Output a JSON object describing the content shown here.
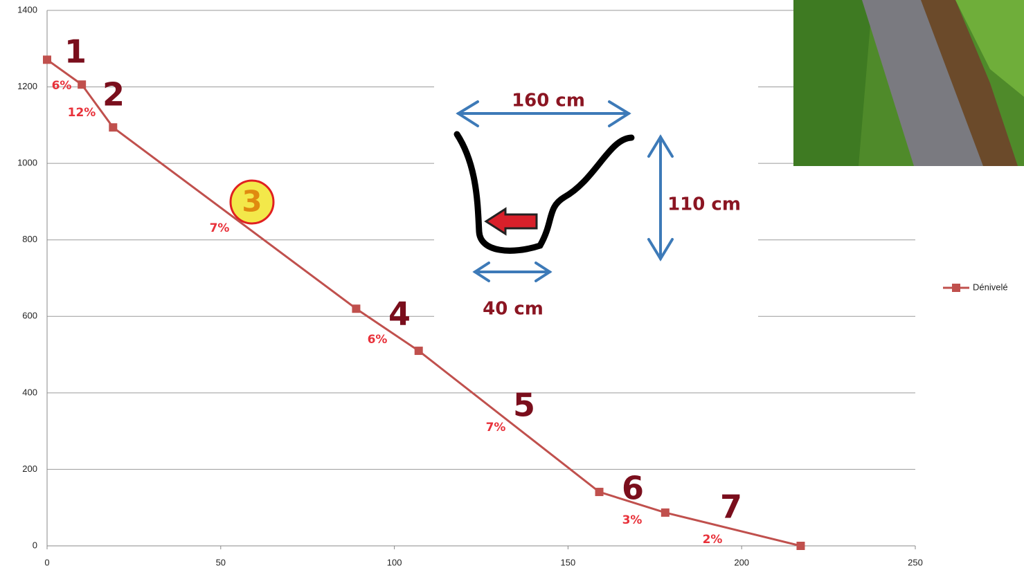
{
  "chart_data": {
    "type": "line",
    "x": [
      0,
      10,
      19,
      89,
      107,
      159,
      178,
      217
    ],
    "series": [
      {
        "name": "Dénivelé",
        "color": "#c0504d",
        "values": [
          1271,
          1206,
          1094,
          620,
          510,
          141,
          87,
          0
        ]
      }
    ],
    "xlim": [
      0,
      250
    ],
    "ylim": [
      0,
      1400
    ],
    "xticks": [
      0,
      50,
      100,
      150,
      200,
      250
    ],
    "yticks": [
      0,
      200,
      400,
      600,
      800,
      1000,
      1200,
      1400
    ],
    "grid": true,
    "legend": "right",
    "annotations": {
      "sections": [
        "1",
        "2",
        "3",
        "4",
        "5",
        "6",
        "7"
      ],
      "slopes": [
        "6%",
        "12%",
        "7%",
        "6%",
        "7%",
        "3%",
        "2%"
      ],
      "diagram": [
        "160 cm",
        "110 cm",
        "40 cm"
      ]
    }
  }
}
